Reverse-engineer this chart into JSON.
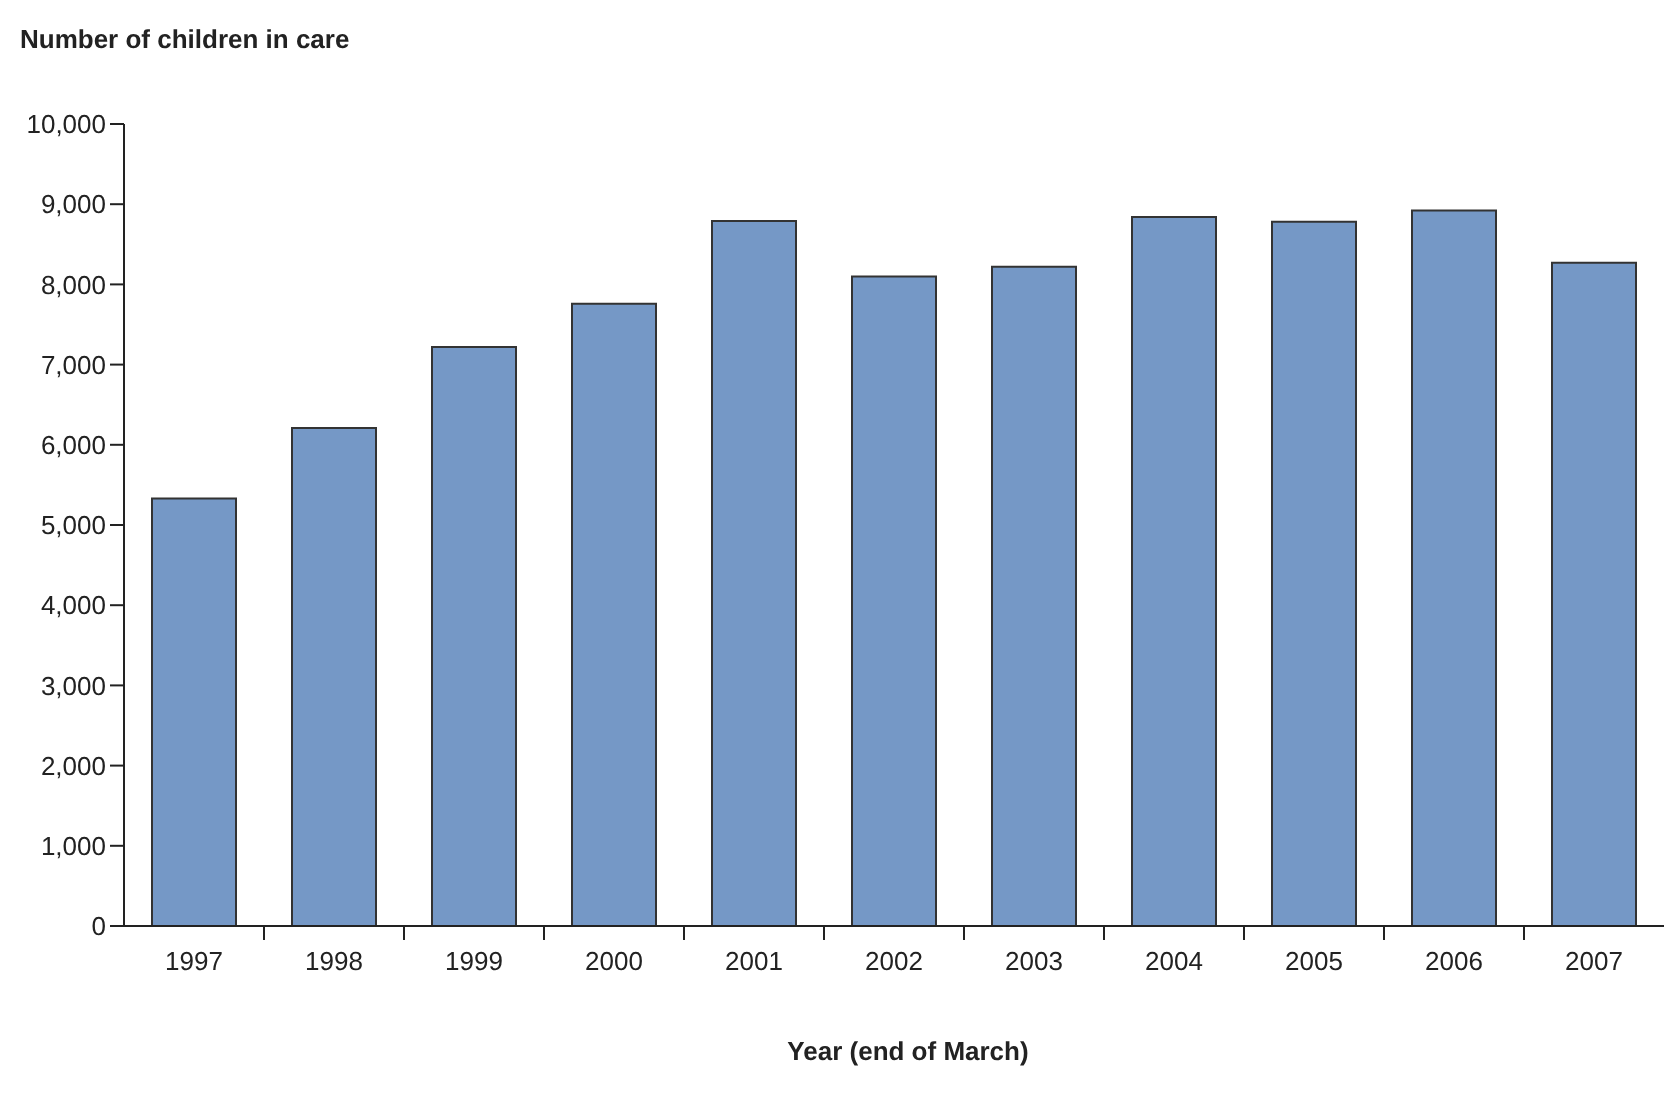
{
  "chart_data": {
    "type": "bar",
    "ylabel": "Number of children in care",
    "xlabel": "Year (end of March)",
    "categories": [
      "1997",
      "1998",
      "1999",
      "2000",
      "2001",
      "2002",
      "2003",
      "2004",
      "2005",
      "2006",
      "2007"
    ],
    "values": [
      5330,
      6210,
      7220,
      7760,
      8790,
      8100,
      8220,
      8840,
      8780,
      8920,
      8270
    ],
    "color": "#7598c6",
    "ylim": [
      0,
      10000
    ],
    "yticks": [
      {
        "value": 0,
        "label": "0"
      },
      {
        "value": 1000,
        "label": "1,000"
      },
      {
        "value": 2000,
        "label": "2,000"
      },
      {
        "value": 3000,
        "label": "3,000"
      },
      {
        "value": 4000,
        "label": "4,000"
      },
      {
        "value": 5000,
        "label": "5,000"
      },
      {
        "value": 6000,
        "label": "6,000"
      },
      {
        "value": 7000,
        "label": "7,000"
      },
      {
        "value": 8000,
        "label": "8,000"
      },
      {
        "value": 9000,
        "label": "9,000"
      },
      {
        "value": 10000,
        "label": "10,000"
      }
    ],
    "grid": false
  }
}
